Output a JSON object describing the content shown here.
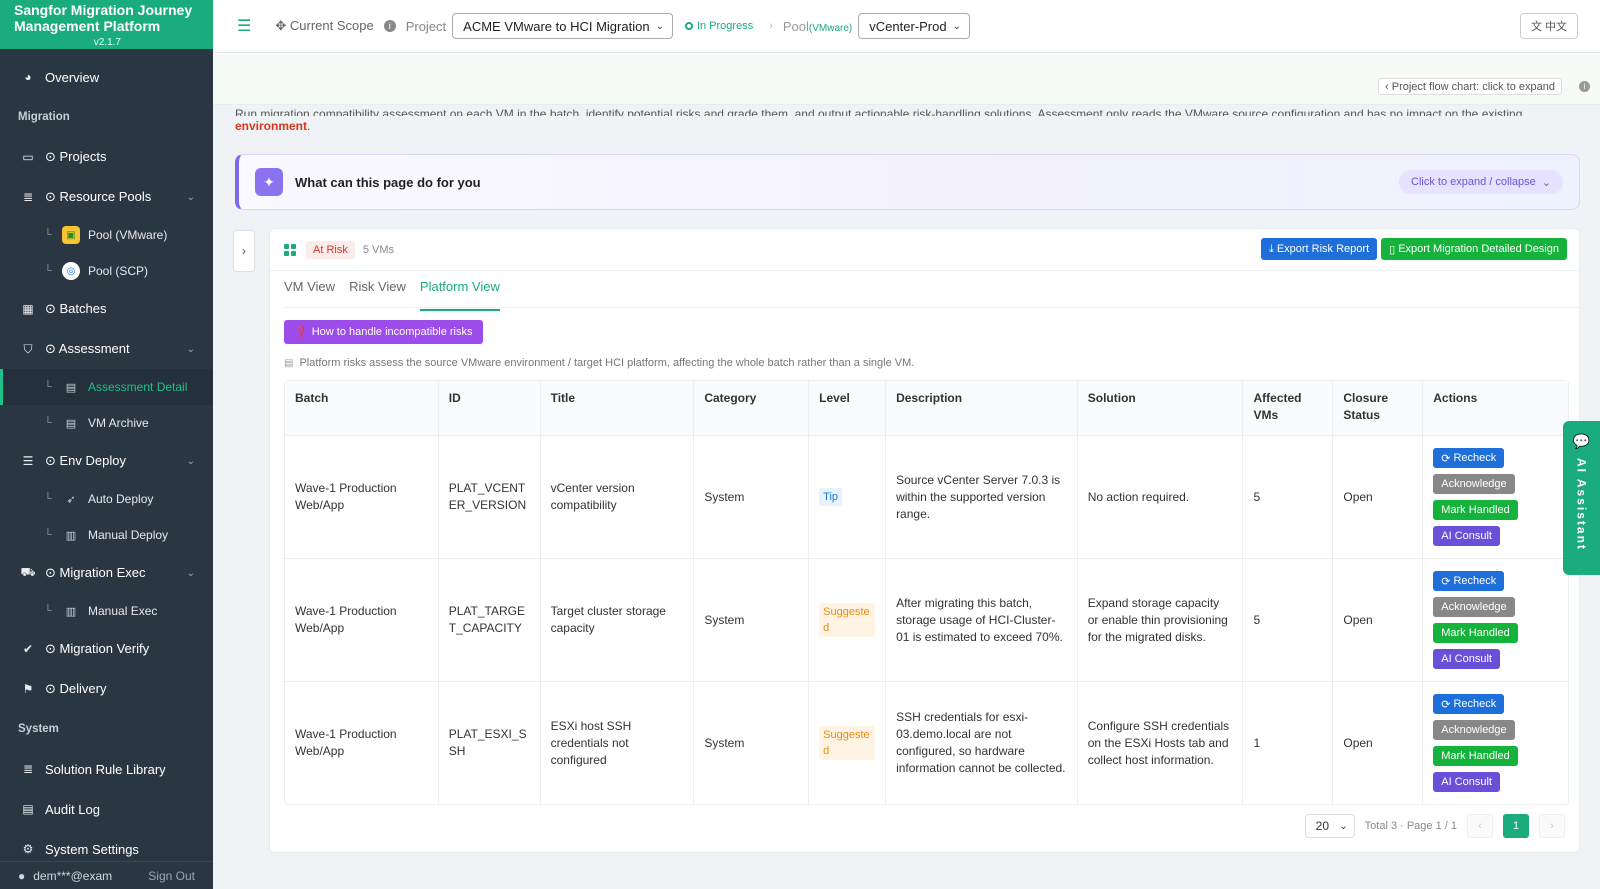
{
  "brand": {
    "title": "Sangfor Migration Journey Management Platform",
    "version": "v2.1.7"
  },
  "sidebar": {
    "overview": "Overview",
    "section_migration": "Migration",
    "projects": "⊙ Projects",
    "resource_pools": "⊙ Resource Pools",
    "pool_vmware": "Pool (VMware)",
    "pool_scp": "Pool (SCP)",
    "batches": "⊙ Batches",
    "assessment": "⊙ Assessment",
    "assessment_detail": "Assessment Detail",
    "vm_archive": "VM Archive",
    "env_deploy": "⊙ Env Deploy",
    "auto_deploy": "Auto Deploy",
    "manual_deploy": "Manual Deploy",
    "migration_exec": "⊙ Migration Exec",
    "manual_exec": "Manual Exec",
    "migration_verify": "⊙ Migration Verify",
    "delivery": "⊙ Delivery",
    "section_system": "System",
    "solution_rule_library": "Solution Rule Library",
    "audit_log": "Audit Log",
    "system_settings": "System Settings",
    "user": "dem***@exam",
    "sign_out": "Sign Out"
  },
  "topbar": {
    "current_scope": "Current Scope",
    "project_label": "Project",
    "project_value": "ACME VMware to HCI Migration",
    "status": "In Progress",
    "pool_label": "Pool",
    "pool_sub": "(VMware)",
    "pool_value": "vCenter-Prod",
    "lang": "中文"
  },
  "content": {
    "flow_chart_btn": "‹ Project flow chart: click to expand",
    "desc_line1": "Run migration compatibility assessment on each VM in the batch, identify potential risks and grade them, and output actionable risk-handling solutions. Assessment only reads the VMware source configuration and has no impact on the existing",
    "desc_red": "environment",
    "desc_end": ".",
    "help_title": "What can this page do for you",
    "help_toggle": "Click to expand / collapse",
    "risk_tag": "At Risk",
    "vm_count": "5 VMs",
    "export_risk": "Export Risk Report",
    "export_design": "Export Migration Detailed Design",
    "tabs": [
      "VM View",
      "Risk View",
      "Platform View"
    ],
    "how_to_btn": "How to handle incompatible risks",
    "note": "Platform risks assess the source VMware environment / target HCI platform, affecting the whole batch rather than a single VM."
  },
  "table": {
    "headers": [
      "Batch",
      "ID",
      "Title",
      "Category",
      "Level",
      "Description",
      "Solution",
      "Affected VMs",
      "Closure Status",
      "Actions"
    ],
    "actions": {
      "recheck": "Recheck",
      "acknowledge": "Acknowledge",
      "mark_handled": "Mark Handled",
      "ai_consult": "AI Consult"
    },
    "rows": [
      {
        "batch": "Wave-1 Production Web/App",
        "id": "PLAT_VCENTER_VERSION",
        "title": "vCenter version compatibility",
        "category": "System",
        "level": "Tip",
        "description": "Source vCenter Server 7.0.3 is within the supported version range.",
        "solution": "No action required.",
        "affected": "5",
        "status": "Open"
      },
      {
        "batch": "Wave-1 Production Web/App",
        "id": "PLAT_TARGET_CAPACITY",
        "title": "Target cluster storage capacity",
        "category": "System",
        "level": "Suggested",
        "description": "After migrating this batch, storage usage of HCI-Cluster-01 is estimated to exceed 70%.",
        "solution": "Expand storage capacity or enable thin provisioning for the migrated disks.",
        "affected": "5",
        "status": "Open"
      },
      {
        "batch": "Wave-1 Production Web/App",
        "id": "PLAT_ESXI_SSH",
        "title": "ESXi host SSH credentials not configured",
        "category": "System",
        "level": "Suggested",
        "description": "SSH credentials for esxi-03.demo.local are not configured, so hardware information cannot be collected.",
        "solution": "Configure SSH credentials on the ESXi Hosts tab and collect host information.",
        "affected": "1",
        "status": "Open"
      }
    ]
  },
  "pager": {
    "page_size": "20",
    "total": "Total 3 · Page 1 / 1",
    "current": "1"
  },
  "ai_assistant": "AI Assistant"
}
